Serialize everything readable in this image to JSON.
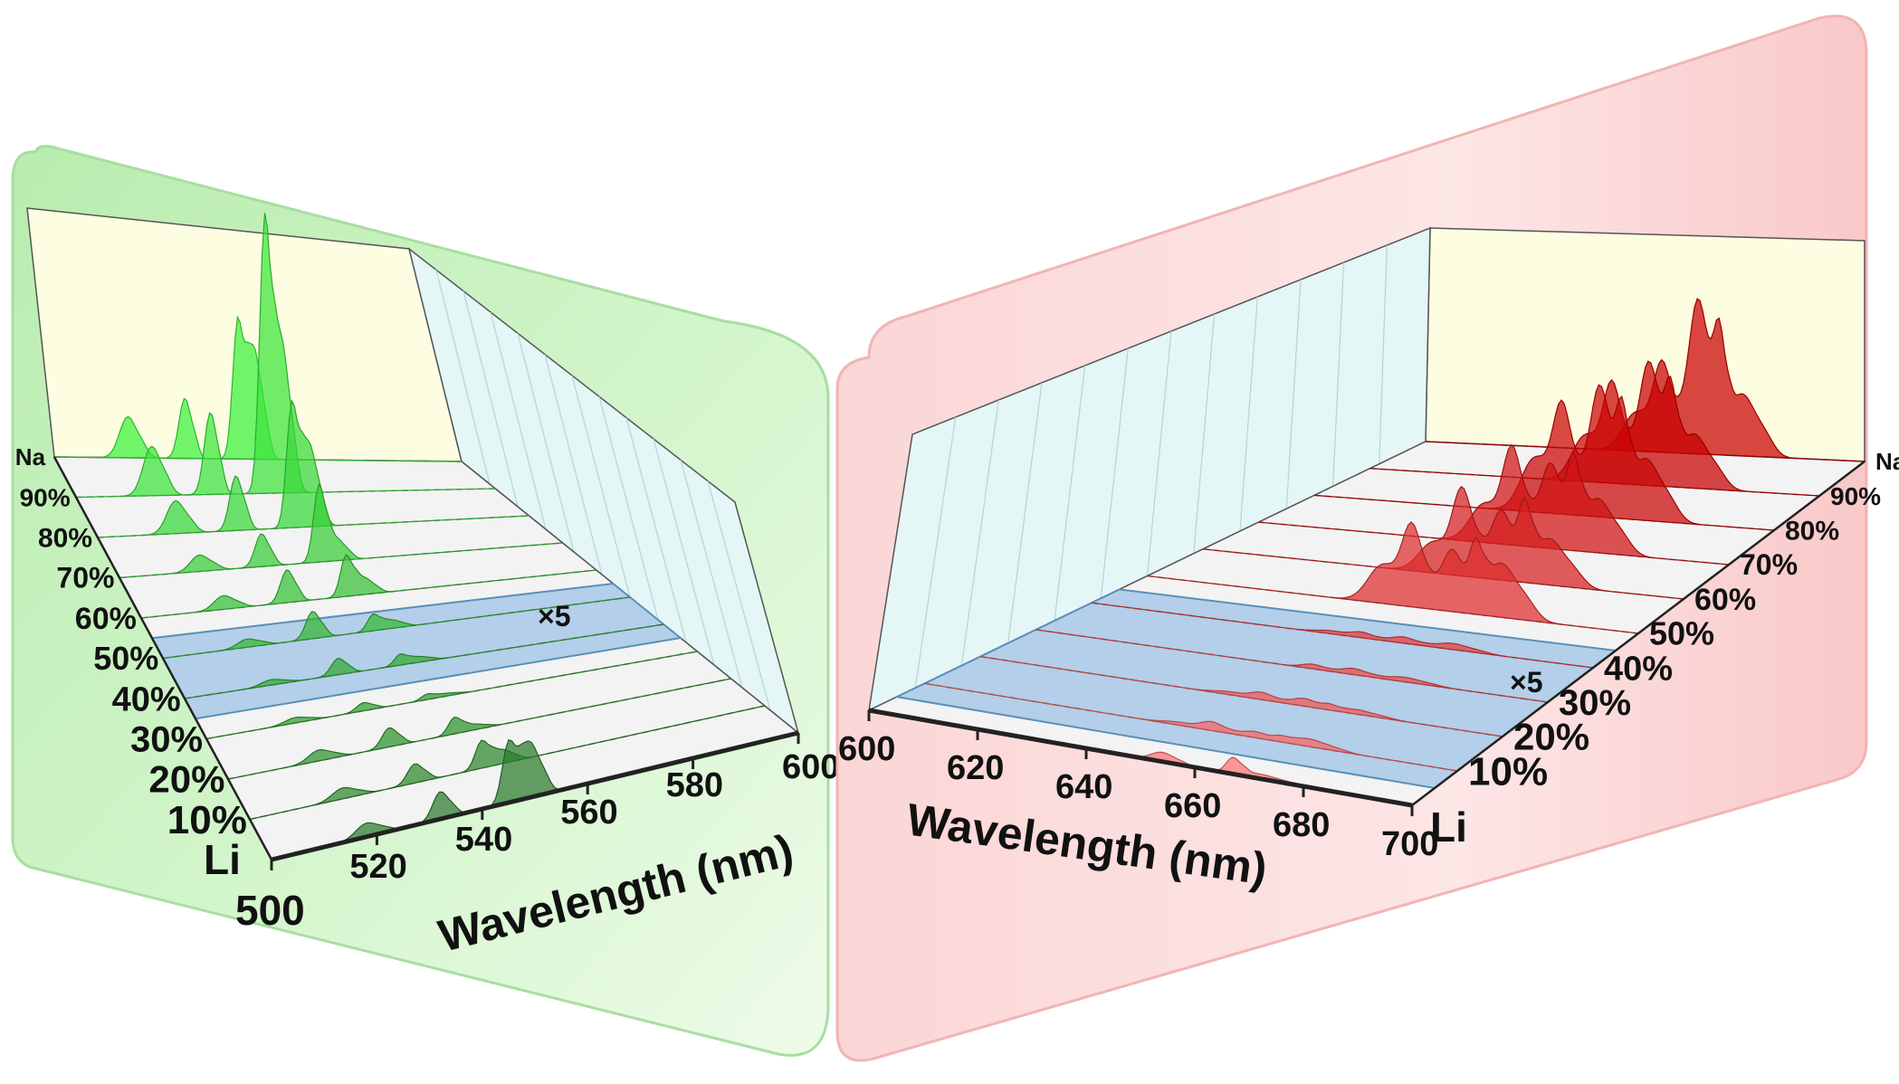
{
  "chart_data": [
    {
      "type": "waterfall-3d",
      "panel": "green",
      "xlabel": "Wavelength (nm)",
      "x_ticks": [
        "500",
        "520",
        "540",
        "560",
        "580",
        "600"
      ],
      "xlim": [
        500,
        600
      ],
      "series_axis": [
        "Li",
        "10%",
        "20%",
        "30%",
        "40%",
        "50%",
        "60%",
        "70%",
        "80%",
        "90%",
        "Na"
      ],
      "annotation": "×5",
      "scaled_series": [
        "40%",
        "50%"
      ],
      "peak_centers_nm": [
        518,
        532,
        545,
        549
      ],
      "peak_widths_nm": [
        2.0,
        1.4,
        1.2,
        1.6
      ],
      "series": [
        {
          "name": "Li",
          "amplitudes": [
            0.05,
            0.1,
            0.22,
            0.2
          ]
        },
        {
          "name": "10%",
          "amplitudes": [
            0.04,
            0.07,
            0.1,
            0.05
          ]
        },
        {
          "name": "20%",
          "amplitudes": [
            0.04,
            0.07,
            0.06,
            0.02
          ]
        },
        {
          "name": "30%",
          "amplitudes": [
            0.02,
            0.03,
            0.02,
            0.01
          ]
        },
        {
          "name": "40%",
          "amplitudes": [
            0.02,
            0.06,
            0.04,
            0.02
          ]
        },
        {
          "name": "50%",
          "amplitudes": [
            0.03,
            0.1,
            0.06,
            0.03
          ]
        },
        {
          "name": "60%",
          "amplitudes": [
            0.05,
            0.12,
            0.15,
            0.06
          ]
        },
        {
          "name": "70%",
          "amplitudes": [
            0.06,
            0.12,
            0.28,
            0.08
          ]
        },
        {
          "name": "80%",
          "amplitudes": [
            0.12,
            0.2,
            0.45,
            0.3
          ]
        },
        {
          "name": "90%",
          "amplitudes": [
            0.18,
            0.3,
            1.0,
            0.55
          ]
        },
        {
          "name": "Na",
          "amplitudes": [
            0.15,
            0.22,
            0.5,
            0.4
          ]
        }
      ],
      "colors": {
        "light": "#3cf03c",
        "dark": "#2a7a2a"
      }
    },
    {
      "type": "waterfall-3d",
      "panel": "red",
      "xlabel": "Wavelength (nm)",
      "x_ticks": [
        "600",
        "620",
        "640",
        "660",
        "680",
        "700"
      ],
      "xlim": [
        600,
        700
      ],
      "series_axis": [
        "Li",
        "10%",
        "20%",
        "30%",
        "40%",
        "50%",
        "60%",
        "70%",
        "80%",
        "90%",
        "Na"
      ],
      "annotation": "×5",
      "scaled_series": [
        "10%",
        "20%",
        "30%",
        "40%"
      ],
      "peak_centers_nm": [
        648,
        654,
        662,
        667,
        672
      ],
      "peak_widths_nm": [
        3.0,
        2.0,
        2.2,
        1.2,
        3.0
      ],
      "series": [
        {
          "name": "Li",
          "amplitudes": [
            0.0,
            0.06,
            0.0,
            0.1,
            0.03
          ]
        },
        {
          "name": "10%",
          "amplitudes": [
            0.02,
            0.05,
            0.04,
            0.02,
            0.05
          ]
        },
        {
          "name": "20%",
          "amplitudes": [
            0.02,
            0.04,
            0.05,
            0.02,
            0.03
          ]
        },
        {
          "name": "30%",
          "amplitudes": [
            0.0,
            0.03,
            0.04,
            0.0,
            0.03
          ]
        },
        {
          "name": "40%",
          "amplitudes": [
            0.02,
            0.03,
            0.04,
            0.0,
            0.04
          ]
        },
        {
          "name": "50%",
          "amplitudes": [
            0.25,
            0.45,
            0.4,
            0.3,
            0.35
          ]
        },
        {
          "name": "60%",
          "amplitudes": [
            0.2,
            0.5,
            0.45,
            0.35,
            0.3
          ]
        },
        {
          "name": "70%",
          "amplitudes": [
            0.25,
            0.55,
            0.55,
            0.4,
            0.35
          ]
        },
        {
          "name": "80%",
          "amplitudes": [
            0.35,
            0.6,
            0.85,
            0.45,
            0.4
          ]
        },
        {
          "name": "90%",
          "amplitudes": [
            0.3,
            0.55,
            0.8,
            0.4,
            0.35
          ]
        },
        {
          "name": "Na",
          "amplitudes": [
            0.25,
            0.5,
            1.0,
            0.5,
            0.4
          ]
        }
      ],
      "colors": {
        "light": "#ff7070",
        "dark": "#c80000"
      }
    }
  ]
}
